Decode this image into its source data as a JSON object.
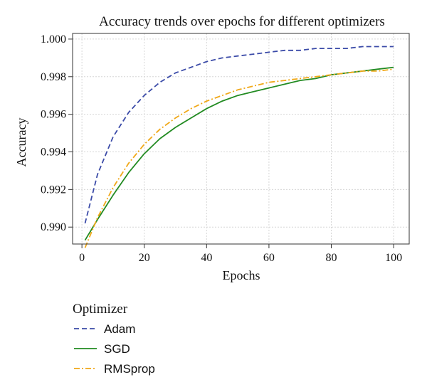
{
  "chart_data": {
    "type": "line",
    "title": "Accuracy trends over epochs for different optimizers",
    "xlabel": "Epochs",
    "ylabel": "Accuracy",
    "xlim": [
      -3,
      105
    ],
    "ylim": [
      0.9891,
      1.0003
    ],
    "xticks": [
      0,
      20,
      40,
      60,
      80,
      100
    ],
    "yticks": [
      0.99,
      0.992,
      0.994,
      0.996,
      0.998,
      1.0
    ],
    "ytick_labels": [
      "0.990",
      "0.992",
      "0.994",
      "0.996",
      "0.998",
      "1.000"
    ],
    "grid": true,
    "legend": {
      "title": "Optimizer",
      "placement": "below"
    },
    "x": [
      1,
      5,
      10,
      15,
      20,
      25,
      30,
      35,
      40,
      45,
      50,
      55,
      60,
      65,
      70,
      75,
      80,
      85,
      90,
      95,
      100
    ],
    "series": [
      {
        "name": "Adam",
        "color": "#3b4ba8",
        "dash": "dashed",
        "values": [
          0.9902,
          0.9928,
          0.9948,
          0.9961,
          0.997,
          0.9977,
          0.9982,
          0.9985,
          0.9988,
          0.999,
          0.9991,
          0.9992,
          0.9993,
          0.9994,
          0.9994,
          0.9995,
          0.9995,
          0.9995,
          0.9996,
          0.9996,
          0.9996
        ]
      },
      {
        "name": "SGD",
        "color": "#228b22",
        "dash": "solid",
        "values": [
          0.9893,
          0.9904,
          0.9917,
          0.9929,
          0.9939,
          0.9947,
          0.9953,
          0.9958,
          0.9963,
          0.9967,
          0.997,
          0.9972,
          0.9974,
          0.9976,
          0.9978,
          0.9979,
          0.9981,
          0.9982,
          0.9983,
          0.9984,
          0.9985
        ]
      },
      {
        "name": "RMSprop",
        "color": "#f0a818",
        "dash": "dashdot",
        "values": [
          0.9889,
          0.9905,
          0.9921,
          0.9934,
          0.9944,
          0.9952,
          0.9958,
          0.9963,
          0.9967,
          0.997,
          0.9973,
          0.9975,
          0.9977,
          0.9978,
          0.9979,
          0.998,
          0.9981,
          0.9982,
          0.9983,
          0.9983,
          0.9984
        ]
      }
    ]
  }
}
